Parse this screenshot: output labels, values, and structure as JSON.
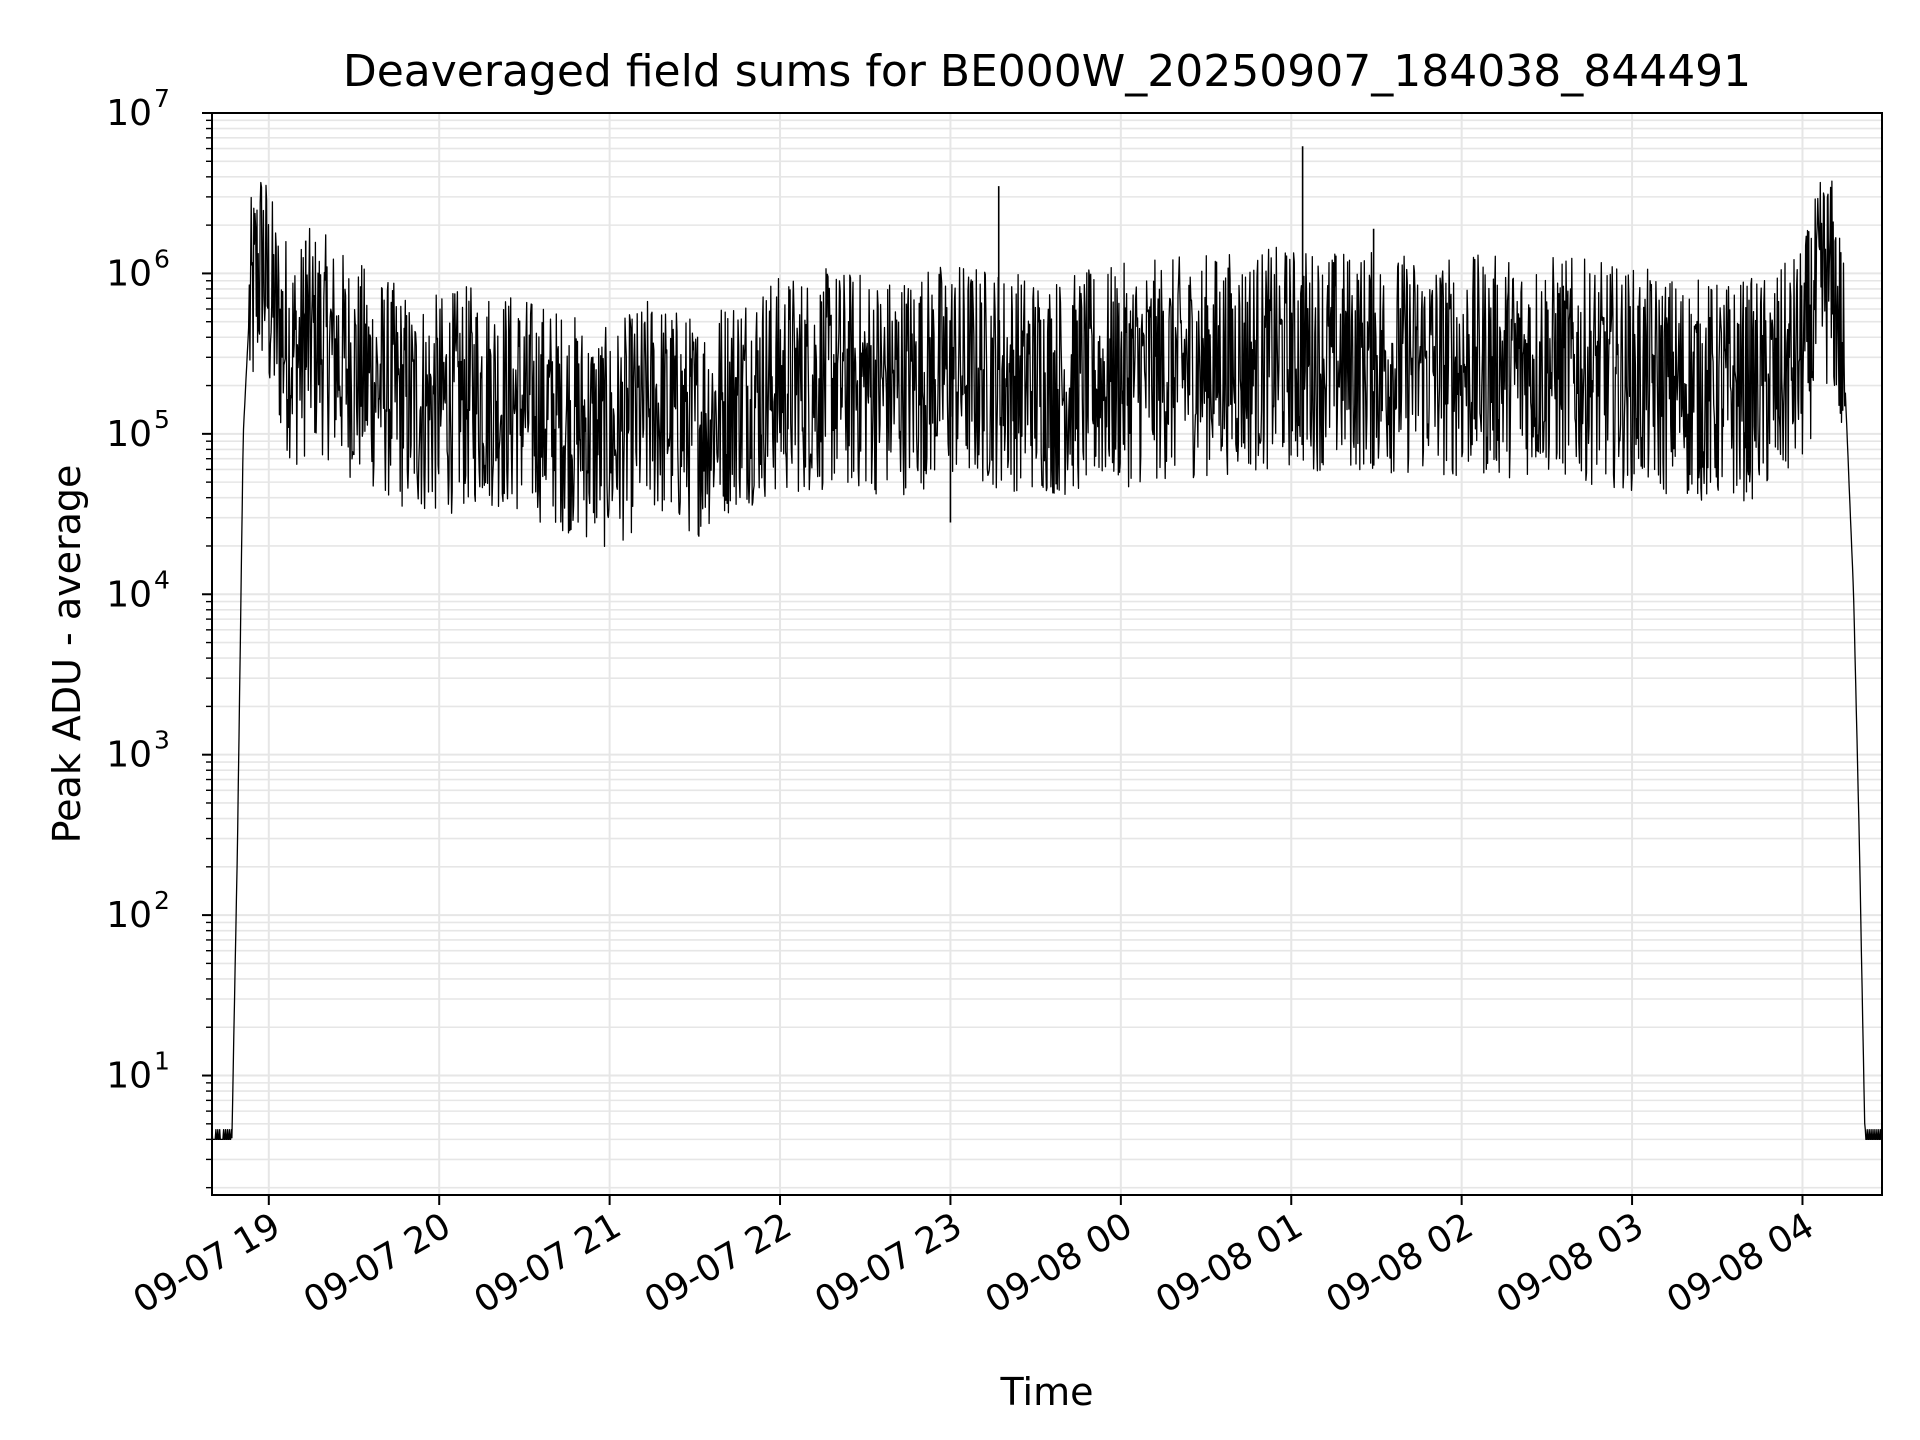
{
  "chart_data": {
    "type": "line",
    "title": "Deaveraged field sums for BE000W_20250907_184038_844491",
    "xlabel": "Time",
    "ylabel": "Peak ADU - average",
    "yscale": "log",
    "ylim": [
      1.8,
      10000000
    ],
    "xlim": [
      "2025-09-07 18:40",
      "2025-09-08 04:28"
    ],
    "grid": true,
    "line_color": "#000000",
    "grid_color": "#e6e6e6",
    "x_ticks": [
      {
        "value": "2025-09-07 19:00",
        "label": "09-07 19"
      },
      {
        "value": "2025-09-07 20:00",
        "label": "09-07 20"
      },
      {
        "value": "2025-09-07 21:00",
        "label": "09-07 21"
      },
      {
        "value": "2025-09-07 22:00",
        "label": "09-07 22"
      },
      {
        "value": "2025-09-07 23:00",
        "label": "09-07 23"
      },
      {
        "value": "2025-09-08 00:00",
        "label": "09-08 00"
      },
      {
        "value": "2025-09-08 01:00",
        "label": "09-08 01"
      },
      {
        "value": "2025-09-08 02:00",
        "label": "09-08 02"
      },
      {
        "value": "2025-09-08 03:00",
        "label": "09-08 03"
      },
      {
        "value": "2025-09-08 04:00",
        "label": "09-08 04"
      }
    ],
    "y_ticks": [
      {
        "value": 10,
        "base": "10",
        "exp": "1"
      },
      {
        "value": 100,
        "base": "10",
        "exp": "2"
      },
      {
        "value": 1000,
        "base": "10",
        "exp": "3"
      },
      {
        "value": 10000,
        "base": "10",
        "exp": "4"
      },
      {
        "value": 100000,
        "base": "10",
        "exp": "5"
      },
      {
        "value": 1000000,
        "base": "10",
        "exp": "6"
      },
      {
        "value": 10000000,
        "base": "10",
        "exp": "7"
      }
    ],
    "series": [
      {
        "x": [
          "2025-09-07 18:40",
          "2025-09-07 18:47",
          "2025-09-07 18:49",
          "2025-09-07 18:51",
          "2025-09-07 18:53",
          "2025-09-07 18:56",
          "2025-09-07 18:58",
          "2025-09-07 19:00",
          "2025-09-07 19:05",
          "2025-09-07 19:10",
          "2025-09-07 19:15",
          "2025-09-07 19:20",
          "2025-09-07 19:30",
          "2025-09-07 19:40",
          "2025-09-07 19:50",
          "2025-09-07 20:00",
          "2025-09-07 20:15",
          "2025-09-07 20:30",
          "2025-09-07 20:45",
          "2025-09-07 21:00",
          "2025-09-07 21:15",
          "2025-09-07 21:30",
          "2025-09-07 21:45",
          "2025-09-07 22:00",
          "2025-09-07 22:20",
          "2025-09-07 22:40",
          "2025-09-07 23:00",
          "2025-09-07 23:20",
          "2025-09-07 23:40",
          "2025-09-08 00:00",
          "2025-09-08 00:30",
          "2025-09-08 01:00",
          "2025-09-08 01:30",
          "2025-09-08 02:00",
          "2025-09-08 02:30",
          "2025-09-08 03:00",
          "2025-09-08 03:30",
          "2025-09-08 03:50",
          "2025-09-08 04:00",
          "2025-09-08 04:08",
          "2025-09-08 04:12",
          "2025-09-08 04:15",
          "2025-09-08 04:18",
          "2025-09-08 04:20",
          "2025-09-08 04:22",
          "2025-09-08 04:28"
        ],
        "y": [
          4,
          4,
          300,
          100000,
          500000,
          1000000,
          1200000,
          700000,
          400000,
          300000,
          400000,
          350000,
          250000,
          200000,
          150000,
          150000,
          180000,
          150000,
          120000,
          90000,
          150000,
          110000,
          170000,
          200000,
          220000,
          200000,
          250000,
          220000,
          200000,
          230000,
          270000,
          300000,
          280000,
          260000,
          270000,
          220000,
          180000,
          200000,
          300000,
          1000000,
          700000,
          200000,
          10000,
          300,
          4,
          4
        ]
      }
    ],
    "spikes": [
      {
        "x": "2025-09-07 23:17",
        "y": 3500000
      },
      {
        "x": "2025-09-08 01:04",
        "y": 6200000
      },
      {
        "x": "2025-09-08 01:29",
        "y": 1900000
      },
      {
        "x": "2025-09-07 19:13",
        "y": 1600000
      },
      {
        "x": "2025-09-07 23:00",
        "y": 28000
      }
    ]
  }
}
